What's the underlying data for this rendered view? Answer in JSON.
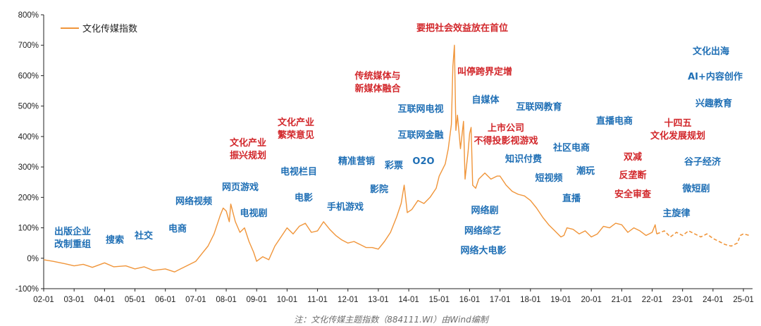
{
  "chart_data": {
    "type": "line",
    "title": "",
    "xlabel": "",
    "ylabel": "",
    "ylim": [
      -100,
      800
    ],
    "y_ticks": [
      "-100%",
      "0%",
      "100%",
      "200%",
      "300%",
      "400%",
      "500%",
      "600%",
      "700%",
      "800%"
    ],
    "y_tick_values": [
      -100,
      0,
      100,
      200,
      300,
      400,
      500,
      600,
      700,
      800
    ],
    "x_ticks": [
      "02-01",
      "03-01",
      "04-01",
      "05-01",
      "06-01",
      "07-01",
      "08-01",
      "09-01",
      "10-01",
      "11-01",
      "12-01",
      "13-01",
      "14-01",
      "15-01",
      "16-01",
      "17-01",
      "18-01",
      "19-01",
      "20-01",
      "21-01",
      "22-01",
      "23-01",
      "24-01",
      "25-01"
    ],
    "x_range": [
      2002.0,
      2025.3
    ],
    "legend": "文化传媒指数",
    "legend_position": "top-left",
    "series": [
      {
        "name": "文化传媒指数",
        "color": "#f0953a",
        "dashed_from": 2022.15,
        "points": [
          [
            2002.0,
            -5
          ],
          [
            2002.3,
            -10
          ],
          [
            2002.7,
            -18
          ],
          [
            2003.0,
            -25
          ],
          [
            2003.3,
            -20
          ],
          [
            2003.6,
            -30
          ],
          [
            2004.0,
            -15
          ],
          [
            2004.3,
            -28
          ],
          [
            2004.7,
            -25
          ],
          [
            2005.0,
            -35
          ],
          [
            2005.3,
            -28
          ],
          [
            2005.6,
            -40
          ],
          [
            2006.0,
            -35
          ],
          [
            2006.3,
            -45
          ],
          [
            2006.6,
            -30
          ],
          [
            2007.0,
            -10
          ],
          [
            2007.2,
            15
          ],
          [
            2007.4,
            40
          ],
          [
            2007.6,
            80
          ],
          [
            2007.8,
            140
          ],
          [
            2007.9,
            165
          ],
          [
            2008.0,
            155
          ],
          [
            2008.1,
            120
          ],
          [
            2008.15,
            178
          ],
          [
            2008.3,
            120
          ],
          [
            2008.45,
            85
          ],
          [
            2008.6,
            100
          ],
          [
            2008.75,
            55
          ],
          [
            2008.9,
            20
          ],
          [
            2009.0,
            -10
          ],
          [
            2009.2,
            5
          ],
          [
            2009.4,
            -5
          ],
          [
            2009.6,
            40
          ],
          [
            2009.8,
            70
          ],
          [
            2010.0,
            100
          ],
          [
            2010.2,
            80
          ],
          [
            2010.4,
            105
          ],
          [
            2010.6,
            115
          ],
          [
            2010.8,
            85
          ],
          [
            2011.0,
            90
          ],
          [
            2011.2,
            120
          ],
          [
            2011.4,
            95
          ],
          [
            2011.6,
            75
          ],
          [
            2011.8,
            60
          ],
          [
            2012.0,
            50
          ],
          [
            2012.2,
            55
          ],
          [
            2012.4,
            45
          ],
          [
            2012.6,
            35
          ],
          [
            2012.8,
            35
          ],
          [
            2013.0,
            30
          ],
          [
            2013.2,
            55
          ],
          [
            2013.4,
            85
          ],
          [
            2013.6,
            135
          ],
          [
            2013.75,
            180
          ],
          [
            2013.85,
            240
          ],
          [
            2013.95,
            150
          ],
          [
            2014.1,
            160
          ],
          [
            2014.3,
            190
          ],
          [
            2014.5,
            180
          ],
          [
            2014.7,
            200
          ],
          [
            2014.9,
            230
          ],
          [
            2015.0,
            270
          ],
          [
            2015.2,
            310
          ],
          [
            2015.3,
            360
          ],
          [
            2015.4,
            440
          ],
          [
            2015.45,
            630
          ],
          [
            2015.5,
            700
          ],
          [
            2015.55,
            420
          ],
          [
            2015.6,
            470
          ],
          [
            2015.7,
            360
          ],
          [
            2015.8,
            450
          ],
          [
            2015.85,
            260
          ],
          [
            2015.95,
            350
          ],
          [
            2016.0,
            410
          ],
          [
            2016.05,
            430
          ],
          [
            2016.1,
            240
          ],
          [
            2016.2,
            230
          ],
          [
            2016.3,
            260
          ],
          [
            2016.5,
            280
          ],
          [
            2016.7,
            260
          ],
          [
            2016.9,
            270
          ],
          [
            2017.0,
            270
          ],
          [
            2017.2,
            240
          ],
          [
            2017.4,
            220
          ],
          [
            2017.6,
            210
          ],
          [
            2017.8,
            205
          ],
          [
            2018.0,
            190
          ],
          [
            2018.2,
            165
          ],
          [
            2018.4,
            135
          ],
          [
            2018.6,
            110
          ],
          [
            2018.8,
            90
          ],
          [
            2019.0,
            70
          ],
          [
            2019.1,
            75
          ],
          [
            2019.2,
            100
          ],
          [
            2019.4,
            95
          ],
          [
            2019.6,
            80
          ],
          [
            2019.8,
            90
          ],
          [
            2020.0,
            70
          ],
          [
            2020.2,
            80
          ],
          [
            2020.4,
            105
          ],
          [
            2020.6,
            100
          ],
          [
            2020.8,
            115
          ],
          [
            2021.0,
            110
          ],
          [
            2021.2,
            85
          ],
          [
            2021.4,
            100
          ],
          [
            2021.6,
            90
          ],
          [
            2021.8,
            75
          ],
          [
            2022.0,
            85
          ],
          [
            2022.1,
            110
          ],
          [
            2022.15,
            80
          ],
          [
            2022.4,
            90
          ],
          [
            2022.6,
            70
          ],
          [
            2022.8,
            85
          ],
          [
            2023.0,
            75
          ],
          [
            2023.2,
            90
          ],
          [
            2023.4,
            80
          ],
          [
            2023.6,
            70
          ],
          [
            2023.8,
            80
          ],
          [
            2024.0,
            65
          ],
          [
            2024.2,
            55
          ],
          [
            2024.4,
            45
          ],
          [
            2024.6,
            40
          ],
          [
            2024.8,
            50
          ],
          [
            2024.9,
            75
          ],
          [
            2025.0,
            80
          ],
          [
            2025.2,
            75
          ]
        ]
      }
    ],
    "annotations": [
      {
        "text": "出版企业",
        "color": "blue"
      },
      {
        "text": "改制重组",
        "color": "blue"
      },
      {
        "text": "搜索",
        "color": "blue"
      },
      {
        "text": "社交",
        "color": "blue"
      },
      {
        "text": "电商",
        "color": "blue"
      },
      {
        "text": "网络视频",
        "color": "blue"
      },
      {
        "text": "网页游戏",
        "color": "blue"
      },
      {
        "text": "电视剧",
        "color": "blue"
      },
      {
        "text": "文化产业",
        "color": "red"
      },
      {
        "text": "振兴规划",
        "color": "red"
      },
      {
        "text": "文化产业",
        "color": "red"
      },
      {
        "text": "繁荣意见",
        "color": "red"
      },
      {
        "text": "电视栏目",
        "color": "blue"
      },
      {
        "text": "电影",
        "color": "blue"
      },
      {
        "text": "精准营销",
        "color": "blue"
      },
      {
        "text": "手机游戏",
        "color": "blue"
      },
      {
        "text": "影院",
        "color": "blue"
      },
      {
        "text": "彩票",
        "color": "blue"
      },
      {
        "text": "传统媒体与",
        "color": "red"
      },
      {
        "text": "新媒体融合",
        "color": "red"
      },
      {
        "text": "互联网电视",
        "color": "blue"
      },
      {
        "text": "互联网金融",
        "color": "blue"
      },
      {
        "text": "O2O",
        "color": "blue"
      },
      {
        "text": "要把社会效益放在首位",
        "color": "red"
      },
      {
        "text": "叫停跨界定增",
        "color": "red"
      },
      {
        "text": "自媒体",
        "color": "blue"
      },
      {
        "text": "互联网教育",
        "color": "blue"
      },
      {
        "text": "上市公司",
        "color": "red"
      },
      {
        "text": "不得投影视游戏",
        "color": "red"
      },
      {
        "text": "知识付费",
        "color": "blue"
      },
      {
        "text": "短视频",
        "color": "blue"
      },
      {
        "text": "网络剧",
        "color": "blue"
      },
      {
        "text": "网络综艺",
        "color": "blue"
      },
      {
        "text": "网络大电影",
        "color": "blue"
      },
      {
        "text": "社区电商",
        "color": "blue"
      },
      {
        "text": "潮玩",
        "color": "blue"
      },
      {
        "text": "直播",
        "color": "blue"
      },
      {
        "text": "直播电商",
        "color": "blue"
      },
      {
        "text": "十四五",
        "color": "red"
      },
      {
        "text": "文化发展规划",
        "color": "red"
      },
      {
        "text": "双减",
        "color": "red"
      },
      {
        "text": "反垄断",
        "color": "red"
      },
      {
        "text": "安全审查",
        "color": "red"
      },
      {
        "text": "主旋律",
        "color": "blue"
      },
      {
        "text": "文化出海",
        "color": "blue"
      },
      {
        "text": "AI+内容创作",
        "color": "blue"
      },
      {
        "text": "兴趣教育",
        "color": "blue"
      },
      {
        "text": "谷子经济",
        "color": "blue"
      },
      {
        "text": "微短剧",
        "color": "blue"
      }
    ],
    "note": "注：文化传媒主题指数（884111.WI）由Wind编制",
    "colors": {
      "line": "#f0953a",
      "blue": "#1f6fb5",
      "red": "#d2272b",
      "axis": "#222222"
    }
  }
}
